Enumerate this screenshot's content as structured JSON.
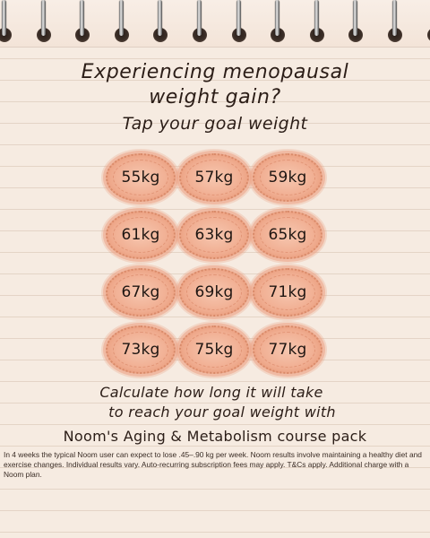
{
  "headline": {
    "line1": "Experiencing menopausal",
    "line2": "weight gain?"
  },
  "subheadline": "Tap your goal weight",
  "weight_options": [
    "55kg",
    "57kg",
    "59kg",
    "61kg",
    "63kg",
    "65kg",
    "67kg",
    "69kg",
    "71kg",
    "73kg",
    "75kg",
    "77kg"
  ],
  "cta": {
    "line1": "Calculate how long it will take",
    "line2": "to reach your goal weight with"
  },
  "course_name": "Noom's Aging & Metabolism course pack",
  "disclaimer": "In 4 weeks the typical Noom user can expect to lose .45–.90 kg per week. Noom results involve maintaining a healthy diet and exercise changes. Individual results vary. Auto-recurring subscription fees may apply. T&Cs apply. Additional charge with a Noom plan.",
  "colors": {
    "paper": "#f6ebe1",
    "badge_fill": "#f1b094",
    "badge_border": "#d98a69",
    "text": "#2b1d17"
  }
}
